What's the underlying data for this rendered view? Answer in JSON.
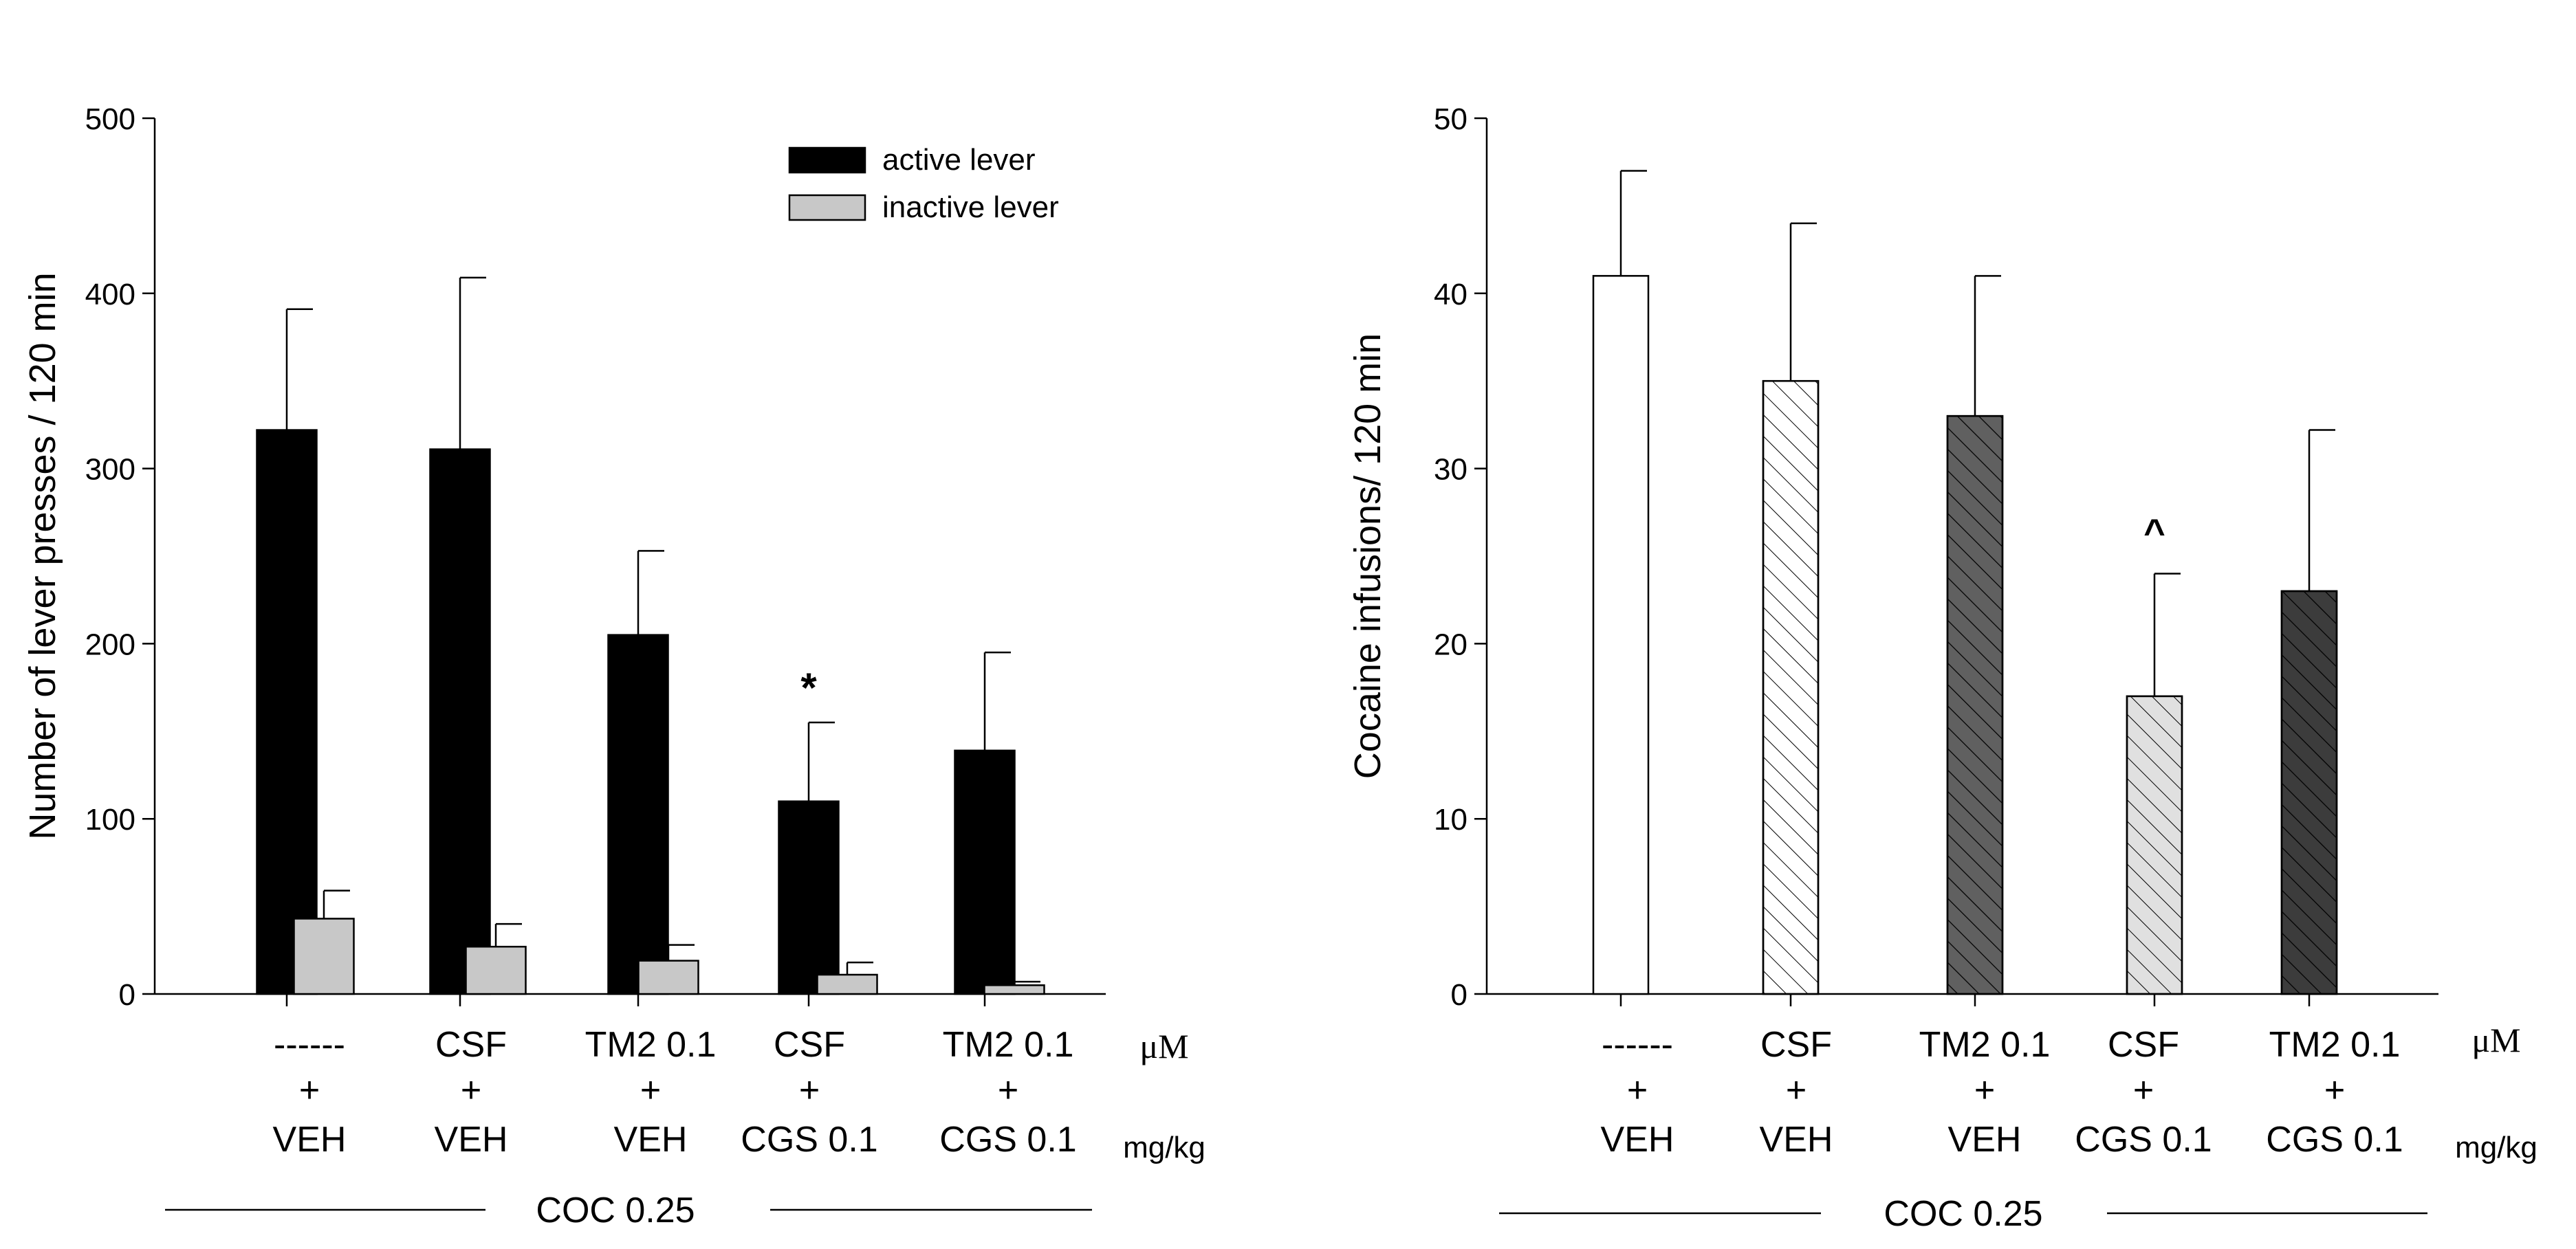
{
  "chart_data": [
    {
      "type": "bar",
      "title": "",
      "xlabel": "",
      "ylabel": "Number of lever presses / 120 min",
      "ylim": [
        0,
        500
      ],
      "yticks": [
        "0",
        "100",
        "200",
        "300",
        "400",
        "500"
      ],
      "categories": [
        [
          "------",
          "+",
          "VEH"
        ],
        [
          "CSF",
          "+",
          "VEH"
        ],
        [
          "TM2 0.1",
          "+",
          "VEH"
        ],
        [
          "CSF",
          "+",
          "CGS 0.1"
        ],
        [
          "TM2 0.1",
          "+",
          "CGS 0.1"
        ]
      ],
      "series": [
        {
          "name": "active lever",
          "color": "#000000",
          "values": [
            322,
            311,
            205,
            110,
            139
          ],
          "errors": [
            69,
            98,
            48,
            45,
            56
          ]
        },
        {
          "name": "inactive lever",
          "color": "#c8c8c8",
          "values": [
            43,
            27,
            19,
            11,
            5
          ],
          "errors": [
            16,
            13,
            9,
            7,
            2
          ]
        }
      ],
      "legend": {
        "position": "top-right",
        "entries": [
          "active lever",
          "inactive lever"
        ]
      },
      "annotations": [
        {
          "text": "*",
          "category_index": 3,
          "series_index": 0
        }
      ],
      "unit_labels": {
        "top": "μM",
        "bottom": "mg/kg"
      },
      "group_label": "COC 0.25"
    },
    {
      "type": "bar",
      "title": "",
      "xlabel": "",
      "ylabel": "Cocaine infusions/ 120 min",
      "ylim": [
        0,
        50
      ],
      "yticks": [
        "0",
        "10",
        "20",
        "30",
        "40",
        "50"
      ],
      "categories": [
        [
          "------",
          "+",
          "VEH"
        ],
        [
          "CSF",
          "+",
          "VEH"
        ],
        [
          "TM2 0.1",
          "+",
          "VEH"
        ],
        [
          "CSF",
          "+",
          "CGS 0.1"
        ],
        [
          "TM2 0.1",
          "+",
          "CGS 0.1"
        ]
      ],
      "series": [
        {
          "name": "Cocaine infusions",
          "values": [
            41,
            35,
            33,
            17,
            23
          ],
          "errors": [
            6,
            9,
            8,
            7,
            9.2
          ],
          "colors": [
            "#ffffff",
            "#ffffff",
            "#606060",
            "#e0e0e0",
            "#3c3c3c"
          ],
          "hatched": [
            false,
            true,
            true,
            true,
            true
          ]
        }
      ],
      "annotations": [
        {
          "text": "^",
          "category_index": 3,
          "series_index": 0
        }
      ],
      "unit_labels": {
        "top": "μM",
        "bottom": "mg/kg"
      },
      "group_label": "COC 0.25"
    }
  ]
}
